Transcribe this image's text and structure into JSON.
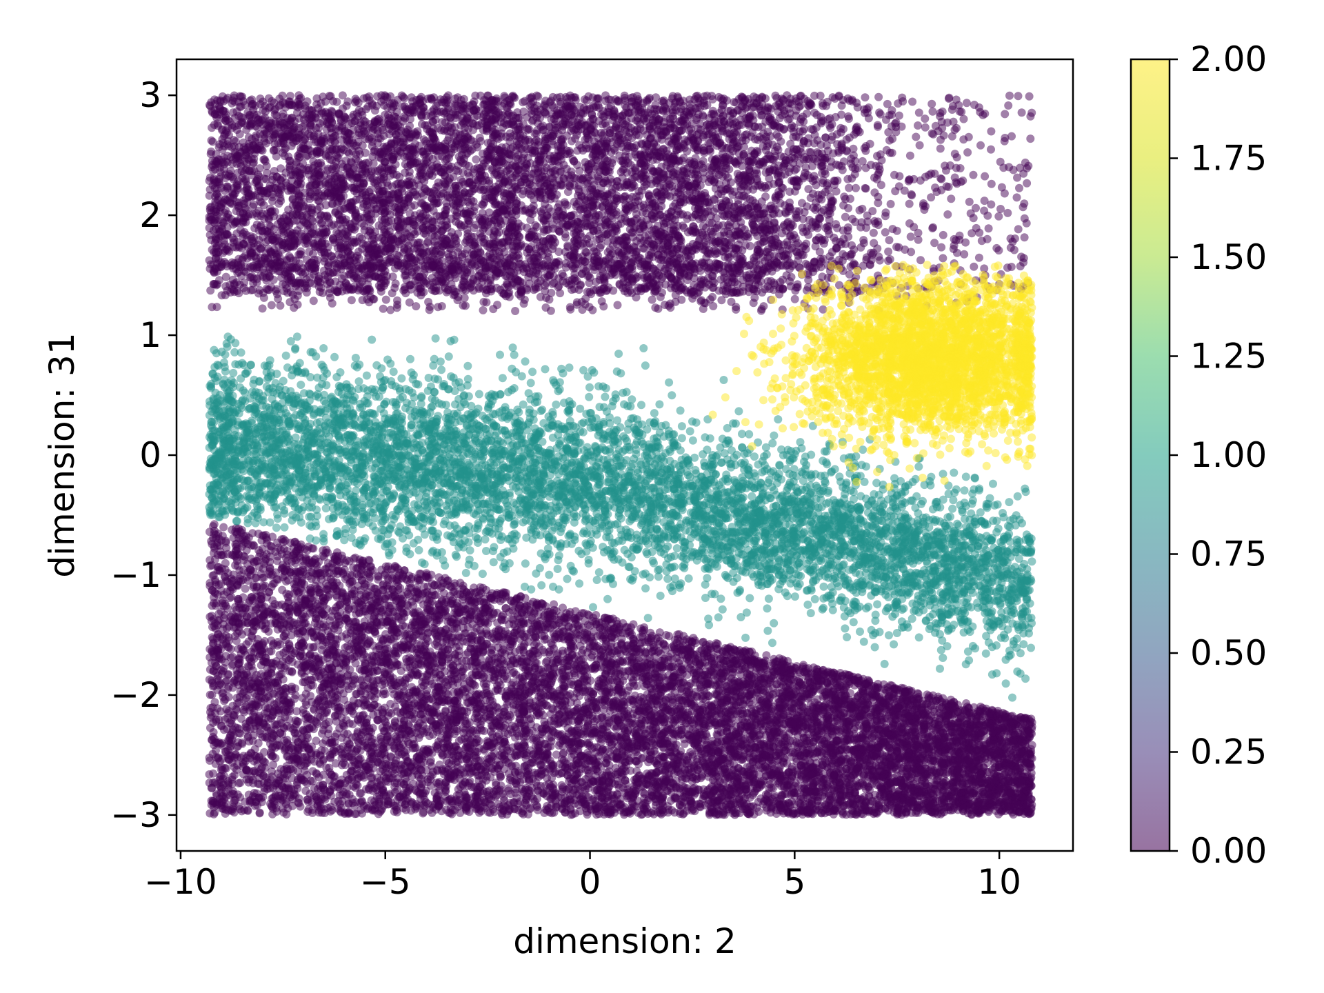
{
  "chart_data": {
    "type": "scatter",
    "title": "",
    "xlabel": "dimension: 2",
    "ylabel": "dimension: 31",
    "xlim": [
      -10.1,
      11.8
    ],
    "ylim": [
      -3.3,
      3.3
    ],
    "x_ticks": [
      -10,
      -5,
      0,
      5,
      10
    ],
    "x_tick_labels": [
      "−10",
      "−5",
      "0",
      "5",
      "10"
    ],
    "y_ticks": [
      -3,
      -2,
      -1,
      0,
      1,
      2,
      3
    ],
    "y_tick_labels": [
      "−3",
      "−2",
      "−1",
      "0",
      "1",
      "2",
      "3"
    ],
    "grid": false,
    "point_alpha": 0.5,
    "colormap": "viridis",
    "colorbar": {
      "range": [
        0,
        2
      ],
      "ticks": [
        0,
        0.25,
        0.5,
        0.75,
        1.0,
        1.25,
        1.5,
        1.75,
        2.0
      ],
      "tick_labels": [
        "0.00",
        "0.25",
        "0.50",
        "0.75",
        "1.00",
        "1.25",
        "1.50",
        "1.75",
        "2.00"
      ]
    },
    "colors": {
      "class_0": "#440154",
      "class_1": "#21918c",
      "class_2": "#fde725"
    },
    "clusters": [
      {
        "class": 0,
        "description_region": "top band",
        "x_range": [
          -9.3,
          10.8
        ],
        "y_range": [
          1.3,
          3.0
        ],
        "density": "dense left, sparse right of x=4"
      },
      {
        "class": 0,
        "description_region": "bottom wedge",
        "x_range": [
          -9.3,
          10.8
        ],
        "y_range": [
          -3.0,
          -0.5
        ],
        "upper_edge_at_x": [
          [
            -9.3,
            -0.55
          ],
          [
            10.8,
            -2.2
          ]
        ]
      },
      {
        "class": 1,
        "description_region": "middle band sloping down",
        "x_range": [
          -9.3,
          10.8
        ],
        "center_at_x": [
          [
            -9.3,
            0.1
          ],
          [
            0,
            -0.2
          ],
          [
            10.8,
            -1.1
          ]
        ]
      },
      {
        "class": 2,
        "description_region": "right cluster",
        "x_range": [
          1.8,
          10.8
        ],
        "y_range": [
          -0.3,
          1.6
        ],
        "center": [
          8.0,
          0.8
        ]
      }
    ]
  }
}
